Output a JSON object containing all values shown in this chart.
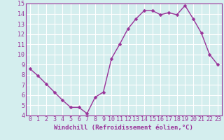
{
  "x": [
    0,
    1,
    2,
    3,
    4,
    5,
    6,
    7,
    8,
    9,
    10,
    11,
    12,
    13,
    14,
    15,
    16,
    17,
    18,
    19,
    20,
    21,
    22,
    23
  ],
  "y": [
    8.6,
    7.9,
    7.1,
    6.3,
    5.5,
    4.8,
    4.8,
    4.2,
    5.8,
    6.3,
    9.6,
    11.0,
    12.5,
    13.5,
    14.3,
    14.3,
    13.9,
    14.1,
    13.9,
    14.8,
    13.5,
    12.1,
    10.0,
    9.0
  ],
  "line_color": "#993399",
  "marker": "D",
  "marker_size": 2.5,
  "xlabel": "Windchill (Refroidissement éolien,°C)",
  "ylim": [
    4,
    15
  ],
  "xlim": [
    0,
    23
  ],
  "yticks": [
    4,
    5,
    6,
    7,
    8,
    9,
    10,
    11,
    12,
    13,
    14,
    15
  ],
  "xticks": [
    0,
    1,
    2,
    3,
    4,
    5,
    6,
    7,
    8,
    9,
    10,
    11,
    12,
    13,
    14,
    15,
    16,
    17,
    18,
    19,
    20,
    21,
    22,
    23
  ],
  "background_color": "#d4eeee",
  "grid_color": "#ffffff",
  "axis_label_color": "#993399",
  "tick_label_color": "#993399",
  "spine_color": "#993399",
  "font_size_ticks": 6.0,
  "font_size_xlabel": 6.5,
  "linewidth": 1.0
}
